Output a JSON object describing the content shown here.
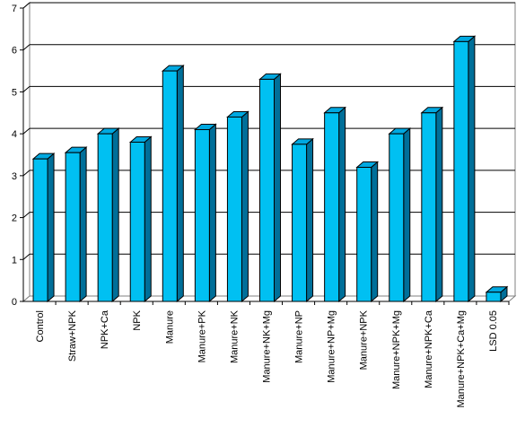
{
  "chart_data": {
    "type": "bar",
    "style": "3d",
    "title": "",
    "xlabel": "",
    "ylabel": "",
    "ylim": [
      0,
      7
    ],
    "yticks": [
      0,
      1,
      2,
      3,
      4,
      5,
      6,
      7
    ],
    "grid": "horizontal",
    "legend": "none",
    "categories": [
      "Control",
      "Straw+NPK",
      "NPK+Ca",
      "NPK",
      "Manure",
      "Manure+PK",
      "Manure+NK",
      "Manure+NK+Mg",
      "Manure+NP",
      "Manure+NP+Mg",
      "Manure+NPK",
      "Manure+NPK+Mg",
      "Manure+NPK+Ca",
      "Manure+NPK+Ca+Mg",
      "LSD 0.05"
    ],
    "values": [
      3.4,
      3.55,
      4.0,
      3.8,
      5.5,
      4.1,
      4.4,
      5.3,
      3.75,
      4.5,
      3.2,
      4.0,
      4.5,
      6.2,
      0.22
    ],
    "colors": {
      "bar_front": "#00c0f2",
      "bar_side": "#006f99",
      "bar_top": "#00a8e0",
      "outline": "#000000",
      "grid": "#000000",
      "wall": "#ffffff"
    }
  }
}
